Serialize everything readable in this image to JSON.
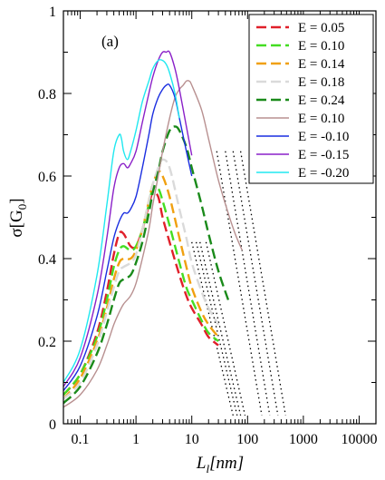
{
  "chart_data": {
    "type": "line",
    "panel_label": "(a)",
    "xlabel": "L",
    "xlabel_subscript": "l",
    "xlabel_units": "[nm]",
    "ylabel": "σ[G",
    "ylabel_subscript": "0",
    "ylabel_close": "]",
    "x_scale": "log",
    "xlim": [
      0.05,
      20000
    ],
    "ylim": [
      0,
      1
    ],
    "x_ticks": [
      0.1,
      1,
      10,
      100,
      1000,
      10000
    ],
    "x_tick_labels": [
      "0.1",
      "1",
      "10",
      "100",
      "1000",
      "10000"
    ],
    "y_ticks": [
      0,
      0.2,
      0.4,
      0.6,
      0.8,
      1
    ],
    "y_tick_labels": [
      "0",
      "0.2",
      "0.4",
      "0.6",
      "0.8",
      "1"
    ],
    "grid": false,
    "legend_position": "top-right",
    "series": [
      {
        "name": "E = 0.05",
        "color": "#e0202a",
        "dash": "dashed",
        "x": [
          0.05,
          0.1,
          0.2,
          0.3,
          0.4,
          0.5,
          0.6,
          0.8,
          1.0,
          1.3,
          1.7,
          2.0,
          2.5,
          3.0,
          4,
          6,
          8,
          10,
          15,
          20,
          30
        ],
        "y": [
          0.07,
          0.12,
          0.22,
          0.32,
          0.41,
          0.46,
          0.46,
          0.43,
          0.43,
          0.47,
          0.53,
          0.56,
          0.55,
          0.5,
          0.44,
          0.36,
          0.31,
          0.28,
          0.24,
          0.21,
          0.19
        ]
      },
      {
        "name": "E = 0.10",
        "color": "#44dd22",
        "dash": "dashed",
        "x": [
          0.05,
          0.1,
          0.2,
          0.3,
          0.4,
          0.5,
          0.6,
          0.8,
          1.0,
          1.3,
          1.7,
          2.0,
          2.5,
          3.0,
          4,
          6,
          8,
          10,
          15,
          20,
          30
        ],
        "y": [
          0.07,
          0.12,
          0.21,
          0.3,
          0.38,
          0.42,
          0.43,
          0.42,
          0.43,
          0.47,
          0.53,
          0.57,
          0.57,
          0.54,
          0.48,
          0.39,
          0.33,
          0.3,
          0.25,
          0.22,
          0.2
        ]
      },
      {
        "name": "E = 0.14",
        "color": "#f0a010",
        "dash": "dashed",
        "x": [
          0.05,
          0.1,
          0.2,
          0.3,
          0.4,
          0.5,
          0.6,
          0.8,
          1.0,
          1.3,
          1.7,
          2.0,
          2.5,
          3.0,
          4,
          6,
          8,
          10,
          15,
          20,
          30
        ],
        "y": [
          0.06,
          0.11,
          0.2,
          0.28,
          0.35,
          0.39,
          0.4,
          0.4,
          0.42,
          0.47,
          0.54,
          0.58,
          0.61,
          0.6,
          0.55,
          0.45,
          0.38,
          0.33,
          0.27,
          0.24,
          0.21
        ]
      },
      {
        "name": "E = 0.18",
        "color": "#dadada",
        "dash": "dashed",
        "x": [
          0.05,
          0.1,
          0.2,
          0.3,
          0.4,
          0.5,
          0.6,
          0.8,
          1.0,
          1.3,
          1.7,
          2.0,
          2.5,
          3.0,
          4,
          6,
          8,
          10,
          15,
          20,
          30
        ],
        "y": [
          0.06,
          0.1,
          0.19,
          0.27,
          0.33,
          0.37,
          0.38,
          0.39,
          0.41,
          0.47,
          0.54,
          0.58,
          0.62,
          0.64,
          0.62,
          0.52,
          0.45,
          0.39,
          0.32,
          0.28,
          0.24
        ]
      },
      {
        "name": "E = 0.24",
        "color": "#1a8a1a",
        "dash": "dashed",
        "x": [
          0.05,
          0.1,
          0.2,
          0.3,
          0.4,
          0.5,
          0.6,
          0.8,
          1.0,
          1.3,
          1.7,
          2.0,
          2.5,
          3.0,
          4,
          5,
          6,
          8,
          10,
          15,
          20,
          30,
          45
        ],
        "y": [
          0.05,
          0.09,
          0.17,
          0.24,
          0.3,
          0.34,
          0.35,
          0.36,
          0.39,
          0.44,
          0.51,
          0.56,
          0.61,
          0.66,
          0.71,
          0.72,
          0.71,
          0.67,
          0.62,
          0.53,
          0.46,
          0.37,
          0.3
        ]
      },
      {
        "name": "E = 0.10",
        "color": "#b89090",
        "dash": "solid",
        "x": [
          0.05,
          0.1,
          0.2,
          0.3,
          0.4,
          0.5,
          0.6,
          0.8,
          1.0,
          1.3,
          1.7,
          2.0,
          2.5,
          3.0,
          4,
          5,
          6,
          7,
          8,
          9,
          10,
          15,
          20,
          30,
          45,
          60,
          80
        ],
        "y": [
          0.04,
          0.07,
          0.13,
          0.19,
          0.24,
          0.27,
          0.29,
          0.31,
          0.34,
          0.4,
          0.47,
          0.53,
          0.6,
          0.66,
          0.74,
          0.79,
          0.81,
          0.82,
          0.83,
          0.83,
          0.82,
          0.76,
          0.69,
          0.59,
          0.51,
          0.46,
          0.42
        ]
      },
      {
        "name": "E = -0.10",
        "color": "#1a2ee0",
        "dash": "solid",
        "x": [
          0.05,
          0.1,
          0.2,
          0.3,
          0.4,
          0.5,
          0.6,
          0.7,
          0.8,
          1.0,
          1.3,
          1.7,
          2.0,
          2.5,
          3.0,
          3.5,
          4,
          5,
          6,
          8,
          10
        ],
        "y": [
          0.08,
          0.14,
          0.26,
          0.37,
          0.45,
          0.49,
          0.51,
          0.51,
          0.52,
          0.55,
          0.62,
          0.7,
          0.75,
          0.79,
          0.81,
          0.82,
          0.82,
          0.79,
          0.74,
          0.66,
          0.6
        ]
      },
      {
        "name": "E = -0.15",
        "color": "#8a20c8",
        "dash": "solid",
        "x": [
          0.05,
          0.1,
          0.2,
          0.3,
          0.4,
          0.5,
          0.6,
          0.7,
          0.8,
          1.0,
          1.3,
          1.7,
          2.0,
          2.5,
          3.0,
          3.5,
          4,
          5,
          6,
          8,
          10
        ],
        "y": [
          0.09,
          0.16,
          0.31,
          0.45,
          0.57,
          0.62,
          0.63,
          0.62,
          0.63,
          0.66,
          0.73,
          0.8,
          0.84,
          0.88,
          0.9,
          0.9,
          0.9,
          0.86,
          0.81,
          0.72,
          0.65
        ]
      },
      {
        "name": "E = -0.20",
        "color": "#20e8f0",
        "dash": "solid",
        "x": [
          0.05,
          0.1,
          0.2,
          0.3,
          0.4,
          0.5,
          0.55,
          0.6,
          0.7,
          0.8,
          1.0,
          1.3,
          1.7,
          2.0,
          2.5,
          3.0,
          3.5,
          4,
          5,
          6
        ],
        "y": [
          0.1,
          0.18,
          0.36,
          0.53,
          0.66,
          0.7,
          0.69,
          0.66,
          0.64,
          0.66,
          0.71,
          0.78,
          0.83,
          0.86,
          0.88,
          0.88,
          0.87,
          0.85,
          0.8,
          0.74
        ]
      }
    ],
    "fit_lines": [
      {
        "color": "#000000",
        "x": [
          10,
          55
        ],
        "y": [
          0.44,
          0.02
        ]
      },
      {
        "color": "#000000",
        "x": [
          12,
          65
        ],
        "y": [
          0.44,
          0.02
        ]
      },
      {
        "color": "#000000",
        "x": [
          14,
          75
        ],
        "y": [
          0.44,
          0.02
        ]
      },
      {
        "color": "#000000",
        "x": [
          18,
          90
        ],
        "y": [
          0.44,
          0.02
        ]
      },
      {
        "color": "#000000",
        "x": [
          28,
          180
        ],
        "y": [
          0.66,
          0.02
        ]
      },
      {
        "color": "#000000",
        "x": [
          40,
          250
        ],
        "y": [
          0.66,
          0.02
        ]
      },
      {
        "color": "#000000",
        "x": [
          55,
          350
        ],
        "y": [
          0.66,
          0.02
        ]
      },
      {
        "color": "#000000",
        "x": [
          75,
          480
        ],
        "y": [
          0.66,
          0.02
        ]
      }
    ]
  }
}
